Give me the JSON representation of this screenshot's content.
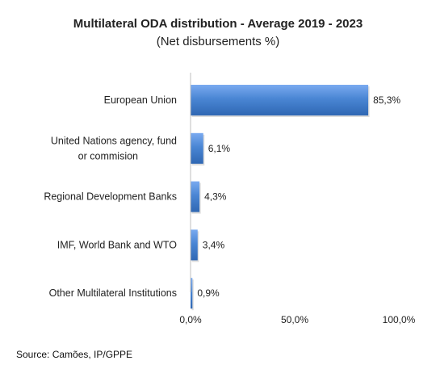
{
  "chart_data": {
    "type": "bar",
    "orientation": "horizontal",
    "title": "Multilateral ODA distribution - Average 2019  - 2023",
    "subtitle": "(Net disbursements %)",
    "categories": [
      "European Union",
      "United Nations agency, fund or commision",
      "Regional Development Banks",
      "IMF, World Bank and WTO",
      "Other Multilateral Institutions"
    ],
    "category_lines": [
      [
        "European Union"
      ],
      [
        "United Nations agency, fund",
        "or commision"
      ],
      [
        "Regional Development Banks"
      ],
      [
        "IMF, World Bank and WTO"
      ],
      [
        "Other Multilateral Institutions"
      ]
    ],
    "values": [
      85.3,
      6.1,
      4.3,
      3.4,
      0.9
    ],
    "data_labels": [
      "85,3%",
      "6,1%",
      "4,3%",
      "3,4%",
      "0,9%"
    ],
    "xlim": [
      0,
      100
    ],
    "x_ticks": [
      0,
      50,
      100
    ],
    "x_tick_labels": [
      "0,0%",
      "50,0%",
      "100,0%"
    ],
    "xlabel": "",
    "ylabel": "",
    "grid": false,
    "legend": "none",
    "bar_color": "#4a86d4"
  },
  "source": "Source: Camões, IP/GPPE"
}
